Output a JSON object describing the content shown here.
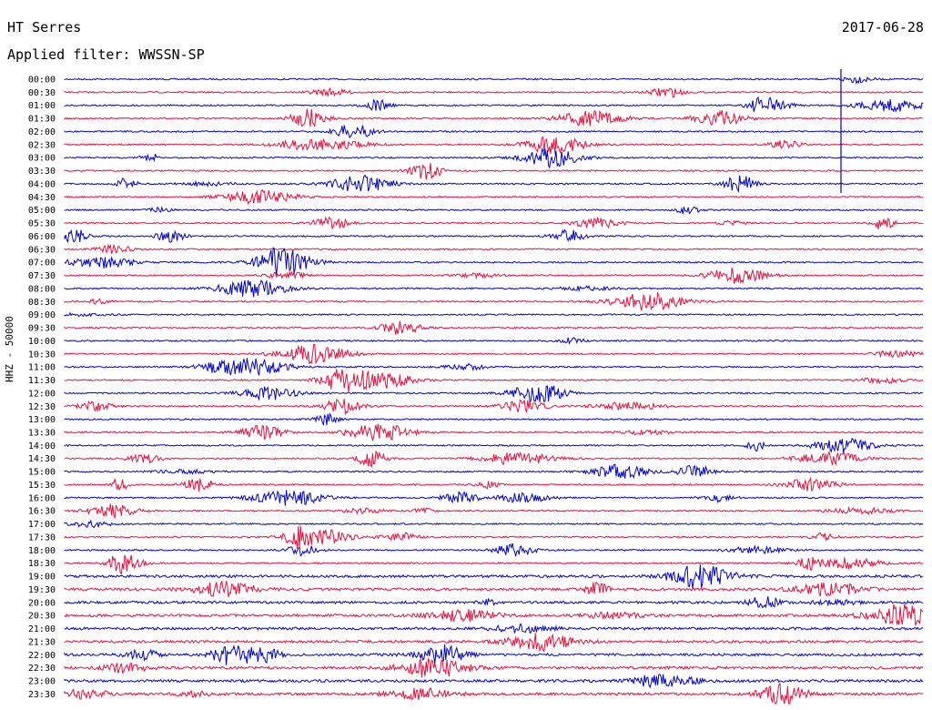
{
  "header": {
    "station": "HT Serres",
    "filter": "Applied filter: WWSSN-SP",
    "date": "2017-06-28",
    "channel_label": "HHZ - 50000"
  },
  "colors": {
    "line_a": "#0000cc",
    "line_b": "#e8103c"
  },
  "chart_data": {
    "type": "line",
    "title": "HT Serres",
    "subtitle": "Applied filter: WWSSN-SP",
    "ylabel": "HHZ - 50000",
    "rows": [
      "00:00",
      "00:30",
      "01:00",
      "01:30",
      "02:00",
      "02:30",
      "03:00",
      "03:30",
      "04:00",
      "04:30",
      "05:00",
      "05:30",
      "06:00",
      "06:30",
      "07:00",
      "07:30",
      "08:00",
      "08:30",
      "09:00",
      "09:30",
      "10:00",
      "10:30",
      "11:00",
      "11:30",
      "12:00",
      "12:30",
      "13:00",
      "13:30",
      "14:00",
      "14:30",
      "15:00",
      "15:30",
      "16:00",
      "16:30",
      "17:00",
      "17:30",
      "18:00",
      "18:30",
      "19:00",
      "19:30",
      "20:00",
      "20:30",
      "21:00",
      "21:30",
      "22:00",
      "22:30",
      "23:00",
      "23:30"
    ],
    "grid": false,
    "legend": "none"
  }
}
